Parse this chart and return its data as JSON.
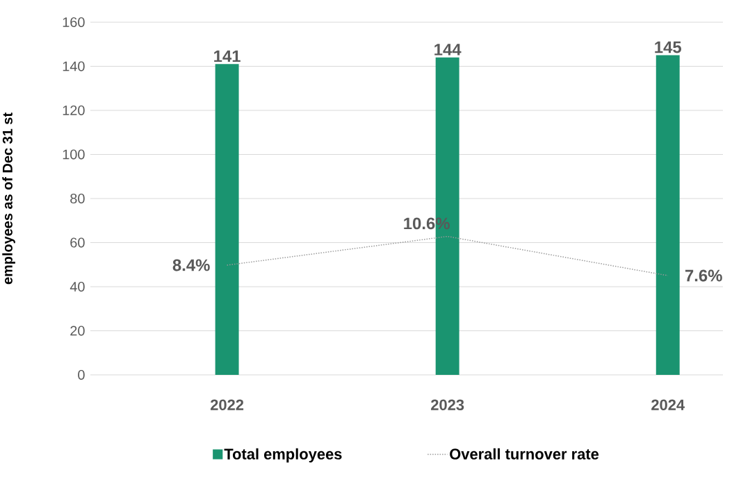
{
  "chart_data": {
    "type": "bar",
    "ylabel": "employees as of Dec 31 st",
    "categories": [
      "2022",
      "2023",
      "2024"
    ],
    "series": [
      {
        "name": "Total employees",
        "color": "#1a9470",
        "values": [
          141,
          144,
          145
        ],
        "value_labels": [
          "141",
          "144",
          "145"
        ]
      },
      {
        "name": "Overall turnover rate",
        "type": "line",
        "axis": "y2",
        "color": "#999999",
        "line_style": "dotted",
        "marker": "none",
        "values": [
          8.4,
          10.6,
          7.6
        ],
        "value_labels": [
          "8.4%",
          "10.6%",
          "7.6%"
        ]
      }
    ],
    "ylim": [
      0,
      160
    ],
    "yticks": [
      0,
      20,
      40,
      60,
      80,
      100,
      120,
      140,
      160
    ],
    "y2lim": [
      0,
      27
    ],
    "grid": "y",
    "legend": "bottom"
  }
}
